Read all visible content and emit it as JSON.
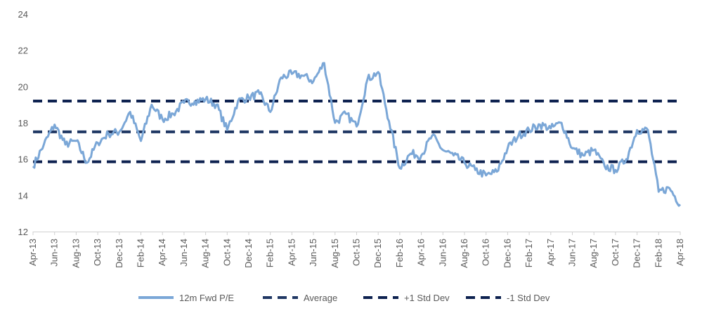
{
  "chart_data": {
    "type": "line",
    "title": "",
    "xlabel": "",
    "ylabel": "",
    "ylim": [
      12,
      24
    ],
    "yticks": [
      12,
      14,
      16,
      18,
      20,
      22,
      24
    ],
    "xtick_labels": [
      "Apr-13",
      "Jun-13",
      "Aug-13",
      "Oct-13",
      "Dec-13",
      "Feb-14",
      "Apr-14",
      "Jun-14",
      "Aug-14",
      "Oct-14",
      "Dec-14",
      "Feb-15",
      "Apr-15",
      "Jun-15",
      "Aug-15",
      "Oct-15",
      "Dec-15",
      "Feb-16",
      "Apr-16",
      "Jun-16",
      "Aug-16",
      "Oct-16",
      "Dec-16",
      "Feb-17",
      "Apr-17",
      "Jun-17",
      "Aug-17",
      "Oct-17",
      "Dec-17",
      "Feb-18",
      "Apr-18"
    ],
    "grid": false,
    "legend_position": "bottom",
    "series": [
      {
        "name": "12m Fwd P/E",
        "style": "solid",
        "color": "#7ba7d7",
        "x": [
          "Apr-13",
          "May-13",
          "Jun-13",
          "Jul-13",
          "Aug-13",
          "Sep-13",
          "Oct-13",
          "Nov-13",
          "Dec-13",
          "Jan-14",
          "Feb-14",
          "Mar-14",
          "Apr-14",
          "May-14",
          "Jun-14",
          "Jul-14",
          "Aug-14",
          "Sep-14",
          "Oct-14",
          "Nov-14",
          "Dec-14",
          "Jan-15",
          "Feb-15",
          "Mar-15",
          "Apr-15",
          "May-15",
          "Jun-15",
          "Jul-15",
          "Aug-15",
          "Sep-15",
          "Oct-15",
          "Nov-15",
          "Dec-15",
          "Jan-16",
          "Feb-16",
          "Mar-16",
          "Apr-16",
          "May-16",
          "Jun-16",
          "Jul-16",
          "Aug-16",
          "Sep-16",
          "Oct-16",
          "Nov-16",
          "Dec-16",
          "Jan-17",
          "Feb-17",
          "Mar-17",
          "Apr-17",
          "May-17",
          "Jun-17",
          "Jul-17",
          "Aug-17",
          "Sep-17",
          "Oct-17",
          "Nov-17",
          "Dec-17",
          "Jan-18",
          "Feb-18",
          "Mar-18",
          "Apr-18"
        ],
        "values": [
          15.6,
          16.8,
          17.9,
          16.8,
          17.0,
          15.8,
          16.9,
          17.4,
          17.5,
          18.6,
          17.0,
          19.0,
          18.2,
          18.5,
          19.1,
          19.2,
          19.3,
          19.0,
          17.6,
          19.2,
          19.4,
          19.6,
          18.6,
          20.5,
          20.7,
          20.6,
          20.3,
          21.3,
          18.0,
          18.5,
          17.8,
          20.4,
          20.8,
          18.1,
          15.5,
          16.3,
          16.2,
          17.3,
          16.5,
          16.2,
          15.8,
          15.4,
          15.1,
          15.3,
          16.6,
          17.3,
          17.6,
          17.9,
          17.7,
          18.0,
          16.6,
          16.2,
          16.5,
          15.6,
          15.4,
          16.0,
          17.6,
          17.6,
          14.2,
          14.4,
          13.5
        ]
      },
      {
        "name": "Average",
        "style": "dashed",
        "color": "#203864",
        "value": 17.5
      },
      {
        "name": "+1 Std Dev",
        "style": "dashed",
        "color": "#0e2250",
        "value": 19.2
      },
      {
        "name": "-1 Std Dev",
        "style": "dashed",
        "color": "#0e2250",
        "value": 15.85
      }
    ]
  }
}
